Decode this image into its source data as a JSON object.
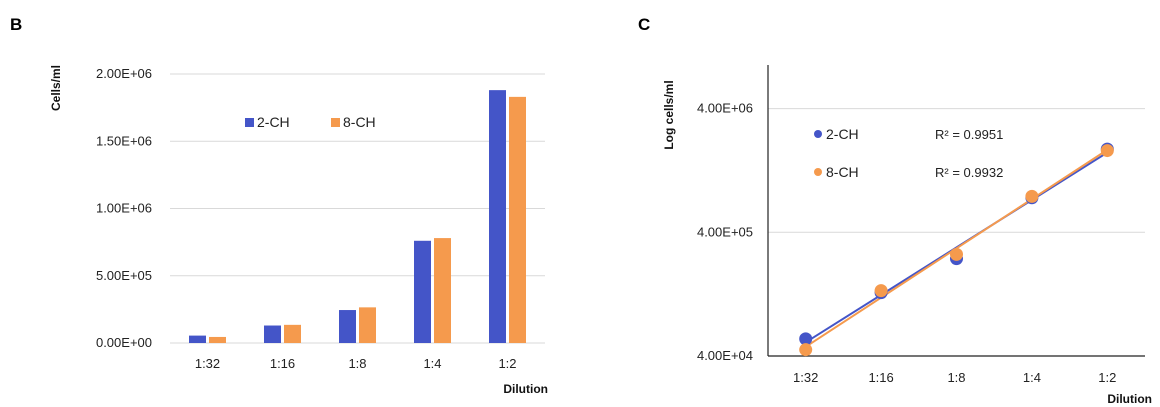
{
  "chart_data": [
    {
      "panel": "B",
      "type": "bar",
      "categories": [
        "1:32",
        "1:16",
        "1:8",
        "1:4",
        "1:2"
      ],
      "series": [
        {
          "name": "2-CH",
          "color": "#4455c8",
          "values": [
            55000,
            130000,
            245000,
            760000,
            1880000
          ]
        },
        {
          "name": "8-CH",
          "color": "#f59a4d",
          "values": [
            45000,
            135000,
            265000,
            780000,
            1830000
          ]
        }
      ],
      "xlabel": "Dilution",
      "ylabel": "Cells/ml",
      "ylim": [
        0,
        2000000
      ],
      "yticks": [
        {
          "value": 0,
          "label": "0.00E+00"
        },
        {
          "value": 500000,
          "label": "5.00E+05"
        },
        {
          "value": 1000000,
          "label": "1.00E+06"
        },
        {
          "value": 1500000,
          "label": "1.50E+06"
        },
        {
          "value": 2000000,
          "label": "2.00E+06"
        }
      ],
      "grid": true,
      "legend": "top-center"
    },
    {
      "panel": "C",
      "type": "scatter",
      "yscale": "log",
      "categories": [
        "1:32",
        "1:16",
        "1:8",
        "1:4",
        "1:2"
      ],
      "series": [
        {
          "name": "2-CH",
          "color": "#4455c8",
          "values": [
            55000,
            130000,
            245000,
            760000,
            1880000
          ],
          "trendline": true,
          "r2": "R² = 0.9951"
        },
        {
          "name": "8-CH",
          "color": "#f59a4d",
          "values": [
            45000,
            135000,
            265000,
            780000,
            1830000
          ],
          "trendline": true,
          "r2": "R² = 0.9932"
        }
      ],
      "xlabel": "Dilution",
      "ylabel": "Log cells/ml",
      "ylim": [
        40000,
        9000000
      ],
      "yticks": [
        {
          "value": 40000,
          "label": "4.00E+04"
        },
        {
          "value": 400000,
          "label": "4.00E+05"
        },
        {
          "value": 4000000,
          "label": "4.00E+06"
        }
      ],
      "grid": true,
      "legend": "top-left"
    }
  ]
}
